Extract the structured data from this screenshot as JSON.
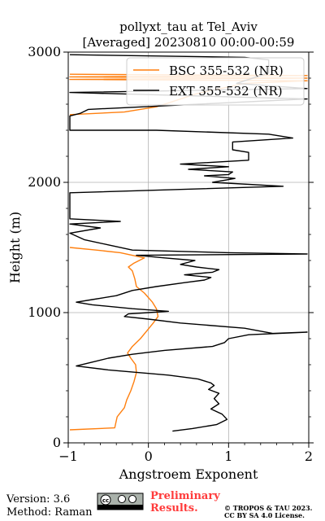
{
  "chart_data": {
    "type": "line",
    "title": "pollyxt_tau at Tel_Aviv",
    "subtitle": "[Averaged] 20230810 00:00-00:59",
    "xlabel": "Angstroem Exponent",
    "ylabel": "Height (m)",
    "xlim": [
      -1,
      2
    ],
    "ylim": [
      0,
      3000
    ],
    "x_ticks": [
      "−1",
      "0",
      "1",
      "2"
    ],
    "y_ticks": [
      "0",
      "1000",
      "2000",
      "3000"
    ],
    "grid": true,
    "legend_position": "top-right",
    "series": [
      {
        "name": "BSC 355-532 (NR)",
        "color": "#ff7f0e",
        "points": [
          [
            -0.98,
            100
          ],
          [
            -0.42,
            115
          ],
          [
            -0.39,
            200
          ],
          [
            -0.3,
            270
          ],
          [
            -0.27,
            330
          ],
          [
            -0.22,
            400
          ],
          [
            -0.18,
            470
          ],
          [
            -0.15,
            540
          ],
          [
            -0.16,
            600
          ],
          [
            -0.22,
            650
          ],
          [
            -0.26,
            690
          ],
          [
            -0.2,
            740
          ],
          [
            -0.1,
            800
          ],
          [
            -0.02,
            860
          ],
          [
            0.06,
            920
          ],
          [
            0.12,
            970
          ],
          [
            0.1,
            1030
          ],
          [
            0.05,
            1080
          ],
          [
            -0.05,
            1150
          ],
          [
            -0.15,
            1200
          ],
          [
            -0.17,
            1260
          ],
          [
            -0.2,
            1320
          ],
          [
            -0.25,
            1350
          ],
          [
            -0.18,
            1380
          ],
          [
            -0.05,
            1420
          ],
          [
            -0.35,
            1460
          ],
          [
            -0.65,
            1480
          ],
          [
            -0.98,
            1500
          ]
        ],
        "top_points": [
          [
            -0.98,
            2520
          ],
          [
            -0.3,
            2540
          ],
          [
            0.1,
            2580
          ],
          [
            0.3,
            2620
          ],
          [
            0.6,
            2680
          ],
          [
            1.2,
            2760
          ],
          [
            1.98,
            2780
          ],
          [
            -0.98,
            2790
          ],
          [
            1.98,
            2800
          ],
          [
            -0.98,
            2810
          ],
          [
            1.98,
            2820
          ],
          [
            -0.98,
            2830
          ]
        ]
      },
      {
        "name": "EXT 355-532 (NR)",
        "color": "#000000",
        "points": [
          [
            0.3,
            90
          ],
          [
            0.55,
            110
          ],
          [
            0.85,
            140
          ],
          [
            0.98,
            180
          ],
          [
            0.92,
            220
          ],
          [
            0.78,
            260
          ],
          [
            0.88,
            300
          ],
          [
            0.82,
            340
          ],
          [
            0.88,
            380
          ],
          [
            0.75,
            410
          ],
          [
            0.82,
            440
          ],
          [
            0.78,
            460
          ],
          [
            0.62,
            490
          ],
          [
            0.25,
            520
          ],
          [
            -0.5,
            560
          ],
          [
            -0.9,
            590
          ],
          [
            -0.7,
            620
          ],
          [
            -0.5,
            650
          ],
          [
            -0.2,
            680
          ],
          [
            0.2,
            710
          ],
          [
            0.8,
            740
          ],
          [
            0.95,
            770
          ],
          [
            1.0,
            800
          ],
          [
            1.25,
            830
          ],
          [
            1.98,
            850
          ],
          [
            1.55,
            840
          ],
          [
            1.2,
            880
          ],
          [
            0.4,
            920
          ],
          [
            0.0,
            950
          ],
          [
            -0.3,
            970
          ],
          [
            -0.25,
            990
          ],
          [
            0.0,
            1000
          ],
          [
            0.25,
            1010
          ],
          [
            -0.2,
            1030
          ],
          [
            -0.7,
            1060
          ],
          [
            -0.9,
            1080
          ],
          [
            -0.7,
            1100
          ],
          [
            -0.4,
            1130
          ],
          [
            -0.2,
            1170
          ],
          [
            0.1,
            1200
          ],
          [
            0.45,
            1230
          ],
          [
            0.7,
            1250
          ],
          [
            0.78,
            1270
          ],
          [
            0.45,
            1290
          ],
          [
            0.8,
            1310
          ],
          [
            0.88,
            1330
          ],
          [
            0.6,
            1350
          ],
          [
            0.4,
            1370
          ],
          [
            0.58,
            1400
          ],
          [
            0.2,
            1420
          ],
          [
            -0.15,
            1440
          ],
          [
            1.98,
            1450
          ],
          [
            1.0,
            1460
          ],
          [
            -0.2,
            1480
          ],
          [
            -0.5,
            1520
          ],
          [
            -0.8,
            1560
          ],
          [
            -0.98,
            1610
          ],
          [
            -0.6,
            1650
          ],
          [
            -0.98,
            1680
          ],
          [
            -0.35,
            1700
          ],
          [
            -0.98,
            1720
          ],
          [
            -0.98,
            1920
          ],
          [
            1.68,
            1970
          ],
          [
            0.8,
            2000
          ],
          [
            1.08,
            2030
          ],
          [
            0.7,
            2050
          ],
          [
            1.0,
            2060
          ],
          [
            1.05,
            2080
          ],
          [
            0.5,
            2100
          ],
          [
            1.0,
            2120
          ],
          [
            0.4,
            2140
          ],
          [
            1.25,
            2170
          ],
          [
            1.25,
            2230
          ],
          [
            1.05,
            2250
          ],
          [
            1.05,
            2310
          ],
          [
            1.8,
            2340
          ],
          [
            1.5,
            2370
          ],
          [
            0.1,
            2400
          ],
          [
            -0.98,
            2400
          ],
          [
            -0.98,
            2510
          ],
          [
            -0.85,
            2530
          ],
          [
            -0.75,
            2560
          ],
          [
            1.98,
            2640
          ],
          [
            -0.98,
            2690
          ],
          [
            1.98,
            2720
          ],
          [
            1.1,
            2760
          ],
          [
            1.5,
            2840
          ],
          [
            1.5,
            2940
          ],
          [
            1.2,
            2960
          ],
          [
            -0.98,
            2980
          ]
        ]
      }
    ]
  },
  "footer": {
    "version": "Version: 3.6",
    "method": "Method: Raman",
    "preliminary_line1": "Preliminary",
    "preliminary_line2": "Results.",
    "copyright_line1": "© TROPOS & TAU 2023.",
    "copyright_line2": "CC BY SA 4.0 License.",
    "license_badge": "cc-by-sa-icon",
    "preliminary_color": "#ff3b3b"
  }
}
